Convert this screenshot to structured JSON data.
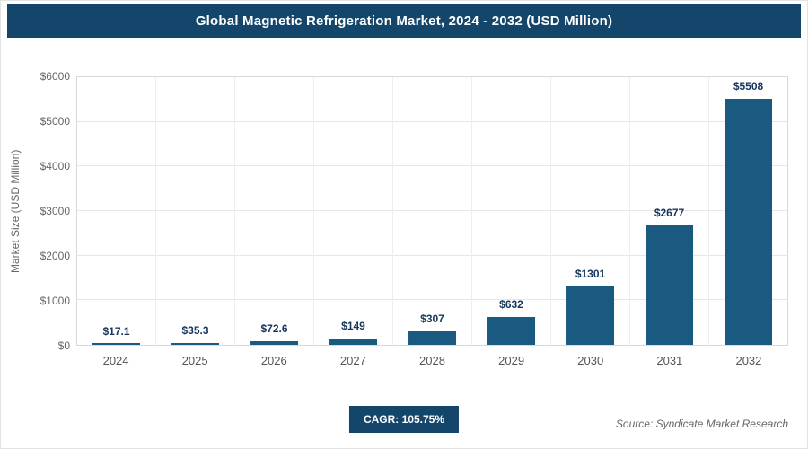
{
  "theme": {
    "accent": "#14466b",
    "bar_color": "#1b5a80",
    "value_label_color": "#16365c"
  },
  "header": {
    "title": "Global Magnetic Refrigeration Market, 2024 - 2032 (USD Million)"
  },
  "chart_data": {
    "type": "bar",
    "title": "Global Magnetic Refrigeration Market, 2024 - 2032 (USD Million)",
    "categories": [
      "2024",
      "2025",
      "2026",
      "2027",
      "2028",
      "2029",
      "2030",
      "2031",
      "2032"
    ],
    "values": [
      17.1,
      35.3,
      72.6,
      149,
      307,
      632,
      1301,
      2677,
      5508
    ],
    "value_labels": [
      "$17.1",
      "$35.3",
      "$72.6",
      "$149",
      "$307",
      "$632",
      "$1301",
      "$2677",
      "$5508"
    ],
    "xlabel": "",
    "ylabel": "Market Size (USD Million)",
    "ylim": [
      0,
      6000
    ],
    "ytick_step": 1000,
    "ytick_labels": [
      "$0",
      "$1000",
      "$2000",
      "$3000",
      "$4000",
      "$5000",
      "$6000"
    ],
    "grid": true,
    "legend": "none"
  },
  "footer": {
    "cagr_label": "CAGR: 105.75%",
    "source": "Source: Syndicate Market Research"
  }
}
